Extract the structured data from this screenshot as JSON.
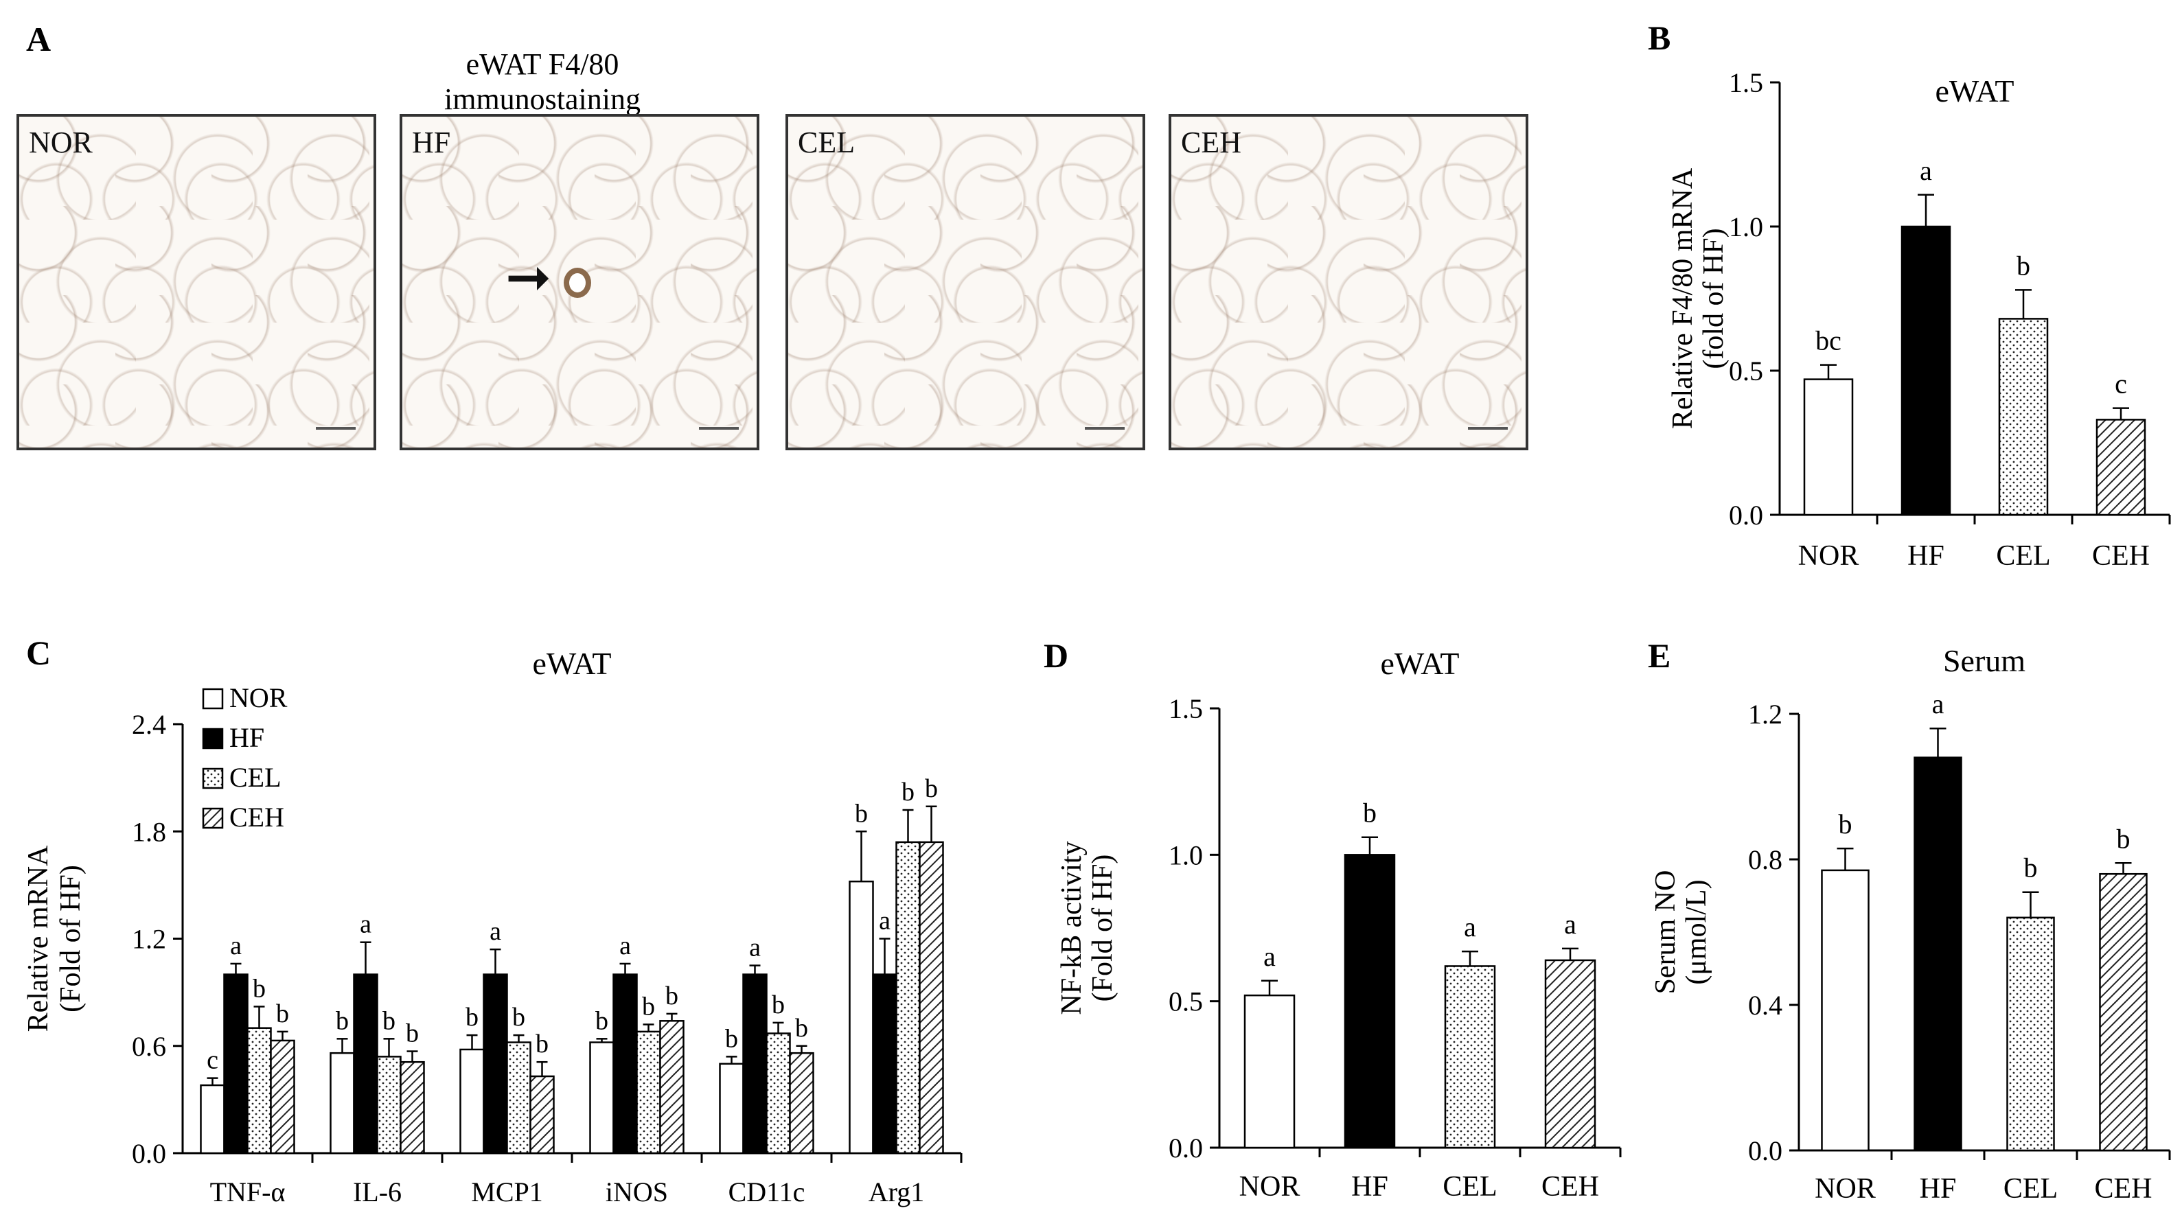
{
  "panel_a": {
    "letter": "A",
    "title": "eWAT F4/80 immunostaining",
    "images": [
      {
        "label": "NOR"
      },
      {
        "label": "HF"
      },
      {
        "label": "CEL"
      },
      {
        "label": "CEH"
      }
    ]
  },
  "colors": {
    "NOR": "#ffffff",
    "HF": "#000000",
    "CEL": "dots",
    "CEH": "hatch",
    "axis": "#000000"
  },
  "chart_data": [
    {
      "panel": "B",
      "type": "bar",
      "title": "eWAT",
      "ylabel": "Relative F4/80 mRNA",
      "ylabel2": "(fold of  HF)",
      "categories": [
        "NOR",
        "HF",
        "CEL",
        "CEH"
      ],
      "values": [
        0.47,
        1.0,
        0.68,
        0.33
      ],
      "errors": [
        0.05,
        0.11,
        0.1,
        0.04
      ],
      "letters": [
        "bc",
        "a",
        "b",
        "c"
      ],
      "ylim": [
        0,
        1.5
      ],
      "yticks": [
        "0.0",
        "0.5",
        "1.0",
        "1.5"
      ],
      "ytick_values": [
        0,
        0.5,
        1.0,
        1.5
      ]
    },
    {
      "panel": "C",
      "type": "bar",
      "title": "eWAT",
      "ylabel": "Relative mRNA",
      "ylabel2": "(Fold of HF)",
      "categories": [
        "TNF-α",
        "IL-6",
        "MCP1",
        "iNOS",
        "CD11c",
        "Arg1"
      ],
      "series": [
        {
          "name": "NOR",
          "values": [
            0.38,
            0.56,
            0.58,
            0.62,
            0.5,
            1.52
          ],
          "errors": [
            0.04,
            0.08,
            0.08,
            0.02,
            0.04,
            0.28
          ],
          "letters": [
            "c",
            "b",
            "b",
            "b",
            "b",
            "b"
          ]
        },
        {
          "name": "HF",
          "values": [
            1.0,
            1.0,
            1.0,
            1.0,
            1.0,
            1.0
          ],
          "errors": [
            0.06,
            0.18,
            0.14,
            0.06,
            0.05,
            0.2
          ],
          "letters": [
            "a",
            "a",
            "a",
            "a",
            "a",
            "a"
          ]
        },
        {
          "name": "CEL",
          "values": [
            0.7,
            0.54,
            0.62,
            0.68,
            0.67,
            1.74
          ],
          "errors": [
            0.12,
            0.1,
            0.04,
            0.04,
            0.06,
            0.18
          ],
          "letters": [
            "b",
            "b",
            "b",
            "b",
            "b",
            "b"
          ]
        },
        {
          "name": "CEH",
          "values": [
            0.63,
            0.51,
            0.43,
            0.74,
            0.56,
            1.74
          ],
          "errors": [
            0.05,
            0.06,
            0.08,
            0.04,
            0.04,
            0.2
          ],
          "letters": [
            "b",
            "b",
            "b",
            "b",
            "b",
            "b"
          ]
        }
      ],
      "ylim": [
        0,
        2.4
      ],
      "yticks": [
        "0.0",
        "0.6",
        "1.2",
        "1.8",
        "2.4"
      ],
      "ytick_values": [
        0,
        0.6,
        1.2,
        1.8,
        2.4
      ],
      "legend": "top-left"
    },
    {
      "panel": "D",
      "type": "bar",
      "title": "eWAT",
      "ylabel": "NF-kB activity",
      "ylabel2": "(Fold of HF)",
      "categories": [
        "NOR",
        "HF",
        "CEL",
        "CEH"
      ],
      "values": [
        0.52,
        1.0,
        0.62,
        0.64
      ],
      "errors": [
        0.05,
        0.06,
        0.05,
        0.04
      ],
      "letters": [
        "a",
        "b",
        "a",
        "a"
      ],
      "ylim": [
        0,
        1.5
      ],
      "yticks": [
        "0.0",
        "0.5",
        "1.0",
        "1.5"
      ],
      "ytick_values": [
        0,
        0.5,
        1.0,
        1.5
      ]
    },
    {
      "panel": "E",
      "type": "bar",
      "title": "Serum",
      "ylabel": "Serum NO",
      "ylabel2": "(μmol/L)",
      "categories": [
        "NOR",
        "HF",
        "CEL",
        "CEH"
      ],
      "values": [
        0.77,
        1.08,
        0.64,
        0.76
      ],
      "errors": [
        0.06,
        0.08,
        0.07,
        0.03
      ],
      "letters": [
        "b",
        "a",
        "b",
        "b"
      ],
      "ylim": [
        0,
        1.2
      ],
      "yticks": [
        "0.0",
        "0.4",
        "0.8",
        "1.2"
      ],
      "ytick_values": [
        0,
        0.4,
        0.8,
        1.2
      ]
    }
  ]
}
